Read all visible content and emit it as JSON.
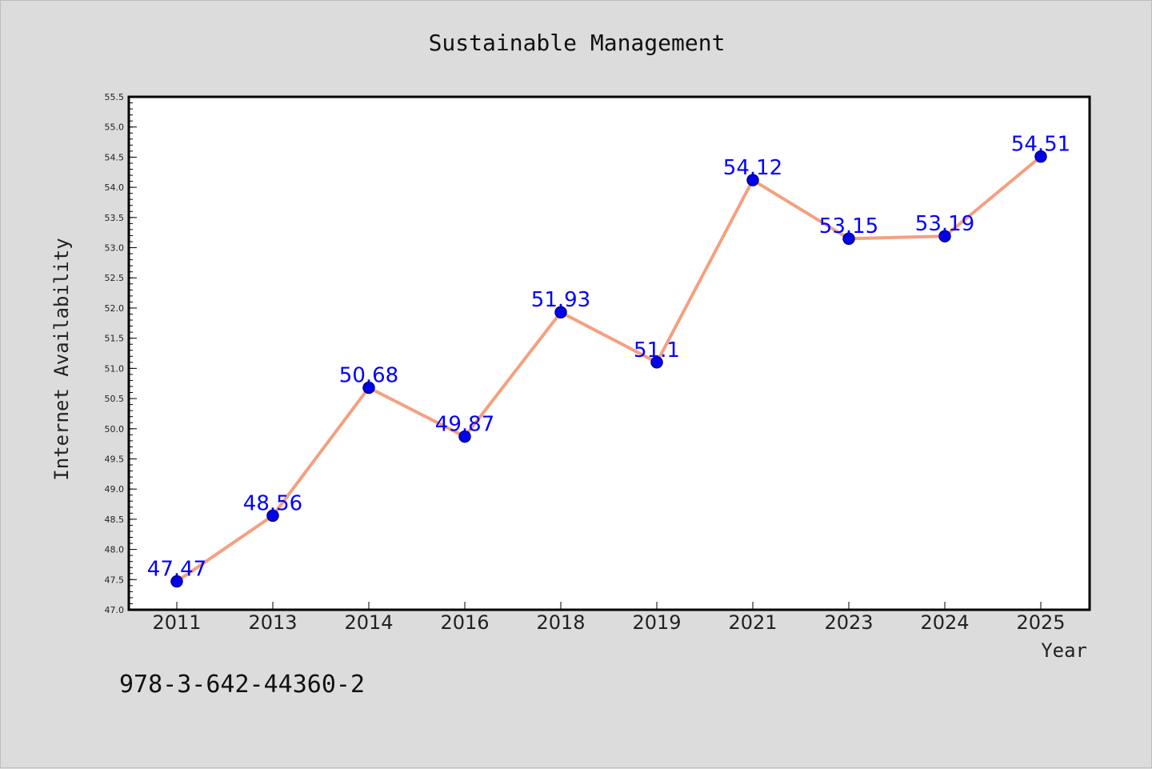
{
  "chart_data": {
    "type": "line",
    "title": "Sustainable Management",
    "xlabel": "Year",
    "ylabel": "Internet Availability",
    "categories": [
      "2011",
      "2013",
      "2014",
      "2016",
      "2018",
      "2019",
      "2021",
      "2023",
      "2024",
      "2025"
    ],
    "series": [
      {
        "values": [
          47.47,
          48.56,
          50.68,
          49.87,
          51.93,
          51.1,
          54.12,
          53.15,
          53.19,
          54.51
        ]
      }
    ],
    "data_labels": [
      "47.47",
      "48.56",
      "50.68",
      "49.87",
      "51.93",
      "51.1",
      "54.12",
      "53.15",
      "53.19",
      "54.51"
    ],
    "ylim": [
      47.0,
      55.5
    ],
    "yticks": [
      "47.0",
      "47.5",
      "48.0",
      "48.5",
      "49.0",
      "49.5",
      "50.0",
      "50.5",
      "51.0",
      "51.5",
      "52.0",
      "52.5",
      "53.0",
      "53.5",
      "54.0",
      "54.5",
      "55.0",
      "55.5"
    ],
    "grid": false,
    "colors": {
      "line": "#f4a080",
      "marker_fill": "#0000ee",
      "marker_edge": "#000080",
      "data_label": "#0000ff",
      "background": "#dcdcdc",
      "plot_background": "#ffffff"
    }
  },
  "footer_text": "978-3-642-44360-2"
}
